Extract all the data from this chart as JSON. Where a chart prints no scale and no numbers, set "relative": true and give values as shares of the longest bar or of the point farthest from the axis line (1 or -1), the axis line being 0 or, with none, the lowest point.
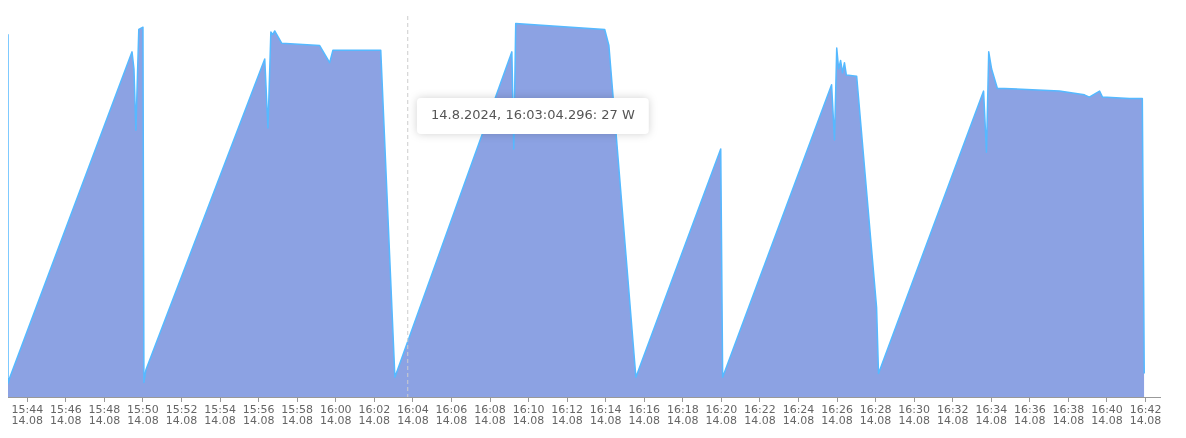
{
  "chart_data": {
    "type": "area",
    "relative": true,
    "legend": false,
    "grid": false,
    "xlim": [
      "2024-08-14T15:43",
      "2024-08-14T16:42:45"
    ],
    "xticks": [
      {
        "value": "2024-08-14T15:44",
        "label": "15:44\n14.08"
      },
      {
        "value": "2024-08-14T15:46",
        "label": "15:46\n14.08"
      },
      {
        "value": "2024-08-14T15:48",
        "label": "15:48\n14.08"
      },
      {
        "value": "2024-08-14T15:50",
        "label": "15:50\n14.08"
      },
      {
        "value": "2024-08-14T15:52",
        "label": "15:52\n14.08"
      },
      {
        "value": "2024-08-14T15:54",
        "label": "15:54\n14.08"
      },
      {
        "value": "2024-08-14T15:56",
        "label": "15:56\n14.08"
      },
      {
        "value": "2024-08-14T15:58",
        "label": "15:58\n14.08"
      },
      {
        "value": "2024-08-14T16:00",
        "label": "16:00\n14.08"
      },
      {
        "value": "2024-08-14T16:02",
        "label": "16:02\n14.08"
      },
      {
        "value": "2024-08-14T16:04",
        "label": "16:04\n14.08"
      },
      {
        "value": "2024-08-14T16:06",
        "label": "16:06\n14.08"
      },
      {
        "value": "2024-08-14T16:08",
        "label": "16:08\n14.08"
      },
      {
        "value": "2024-08-14T16:10",
        "label": "16:10\n14.08"
      },
      {
        "value": "2024-08-14T16:12",
        "label": "16:12\n14.08"
      },
      {
        "value": "2024-08-14T16:14",
        "label": "16:14\n14.08"
      },
      {
        "value": "2024-08-14T16:16",
        "label": "16:16\n14.08"
      },
      {
        "value": "2024-08-14T16:18",
        "label": "16:18\n14.08"
      },
      {
        "value": "2024-08-14T16:20",
        "label": "16:20\n14.08"
      },
      {
        "value": "2024-08-14T16:22",
        "label": "16:22\n14.08"
      },
      {
        "value": "2024-08-14T16:24",
        "label": "16:24\n14.08"
      },
      {
        "value": "2024-08-14T16:26",
        "label": "16:26\n14.08"
      },
      {
        "value": "2024-08-14T16:28",
        "label": "16:28\n14.08"
      },
      {
        "value": "2024-08-14T16:30",
        "label": "16:30\n14.08"
      },
      {
        "value": "2024-08-14T16:32",
        "label": "16:32\n14.08"
      },
      {
        "value": "2024-08-14T16:34",
        "label": "16:34\n14.08"
      },
      {
        "value": "2024-08-14T16:36",
        "label": "16:36\n14.08"
      },
      {
        "value": "2024-08-14T16:38",
        "label": "16:38\n14.08"
      },
      {
        "value": "2024-08-14T16:40",
        "label": "16:40\n14.08"
      },
      {
        "value": "2024-08-14T16:42",
        "label": "16:42\n14.08"
      }
    ],
    "x": [
      "2024-08-14T15:43:00",
      "2024-08-14T15:43:00",
      "2024-08-14T15:43:06",
      "2024-08-14T15:49:26",
      "2024-08-14T15:49:32",
      "2024-08-14T15:49:38",
      "2024-08-14T15:49:47",
      "2024-08-14T15:50:00",
      "2024-08-14T15:50:03",
      "2024-08-14T15:50:09",
      "2024-08-14T15:56:19",
      "2024-08-14T15:56:29",
      "2024-08-14T15:56:38",
      "2024-08-14T15:56:44",
      "2024-08-14T15:56:50",
      "2024-08-14T15:57:12",
      "2024-08-14T15:59:10",
      "2024-08-14T15:59:41",
      "2024-08-14T15:59:51",
      "2024-08-14T16:02:20",
      "2024-08-14T16:03:04",
      "2024-08-14T16:09:08",
      "2024-08-14T16:09:14",
      "2024-08-14T16:09:20",
      "2024-08-14T16:13:57",
      "2024-08-14T16:14:10",
      "2024-08-14T16:15:34",
      "2024-08-14T16:19:58",
      "2024-08-14T16:20:04",
      "2024-08-14T16:25:43",
      "2024-08-14T16:25:52",
      "2024-08-14T16:25:59",
      "2024-08-14T16:26:05",
      "2024-08-14T16:26:11",
      "2024-08-14T16:26:17",
      "2024-08-14T16:26:23",
      "2024-08-14T16:26:29",
      "2024-08-14T16:27:01",
      "2024-08-14T16:28:03",
      "2024-08-14T16:28:09",
      "2024-08-14T16:33:36",
      "2024-08-14T16:33:45",
      "2024-08-14T16:33:52",
      "2024-08-14T16:34:01",
      "2024-08-14T16:34:19",
      "2024-08-14T16:34:41",
      "2024-08-14T16:37:32",
      "2024-08-14T16:38:50",
      "2024-08-14T16:39:05",
      "2024-08-14T16:39:37",
      "2024-08-14T16:39:46",
      "2024-08-14T16:41:10",
      "2024-08-14T16:41:50",
      "2024-08-14T16:41:56"
    ],
    "series": [
      {
        "color": "#8ca2e3",
        "values": [
          0.97,
          0.036,
          0.053,
          0.924,
          0.878,
          0.714,
          0.984,
          0.99,
          0.039,
          0.072,
          0.905,
          0.72,
          0.977,
          0.97,
          0.98,
          0.947,
          0.941,
          0.895,
          0.928,
          0.928,
          0.053,
          0.924,
          0.664,
          1,
          0.984,
          0.941,
          0.053,
          0.664,
          0.053,
          0.836,
          0.688,
          0.934,
          0.878,
          0.901,
          0.868,
          0.895,
          0.862,
          0.859,
          0.24,
          0.063,
          0.819,
          0.655,
          0.924,
          0.878,
          0.826,
          0.826,
          0.819,
          0.809,
          0.803,
          0.819,
          0.803,
          0.799,
          0.799,
          0.063
        ]
      }
    ],
    "ref_lines": [
      {
        "axis": "x",
        "value": "2024-08-14T16:03:44",
        "color": "#cccccc",
        "line_style": "dashed"
      }
    ],
    "annotations": [
      "14.8.2024, 16:03:04.296: 27 W"
    ]
  }
}
